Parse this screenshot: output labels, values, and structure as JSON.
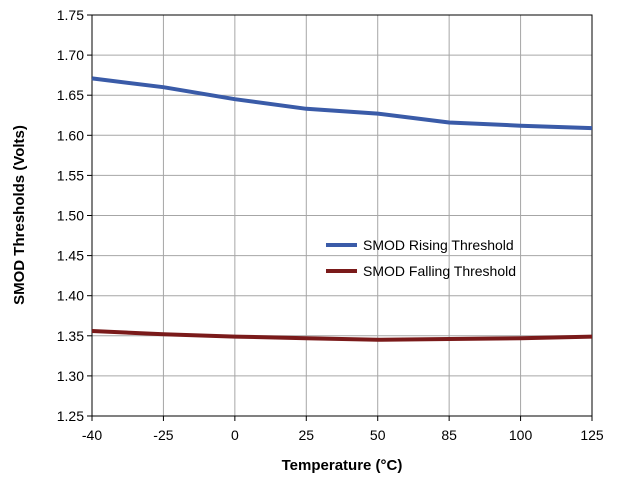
{
  "chart_data": {
    "type": "line",
    "title": "",
    "xlabel": "Temperature (°C)",
    "ylabel": "SMOD Thresholds (Volts)",
    "x_tick_labels": [
      "-40",
      "-25",
      "0",
      "25",
      "50",
      "85",
      "100",
      "125"
    ],
    "y_tick_labels": [
      "1.25",
      "1.30",
      "1.35",
      "1.40",
      "1.45",
      "1.50",
      "1.55",
      "1.60",
      "1.65",
      "1.70",
      "1.75"
    ],
    "ylim": [
      1.25,
      1.75
    ],
    "grid": true,
    "legend_position": "center-right",
    "series": [
      {
        "name": "SMOD Rising Threshold",
        "color": "#3a5ba8",
        "points": [
          [
            "-40",
            1.671
          ],
          [
            "-25",
            1.66
          ],
          [
            "0",
            1.645
          ],
          [
            "25",
            1.633
          ],
          [
            "50",
            1.627
          ],
          [
            "85",
            1.616
          ],
          [
            "100",
            1.612
          ],
          [
            "125",
            1.609
          ]
        ]
      },
      {
        "name": "SMOD Falling Threshold",
        "color": "#7a1a1a",
        "points": [
          [
            "-40",
            1.356
          ],
          [
            "-25",
            1.352
          ],
          [
            "0",
            1.349
          ],
          [
            "25",
            1.347
          ],
          [
            "50",
            1.345
          ],
          [
            "85",
            1.346
          ],
          [
            "100",
            1.347
          ],
          [
            "125",
            1.349
          ]
        ]
      }
    ]
  }
}
